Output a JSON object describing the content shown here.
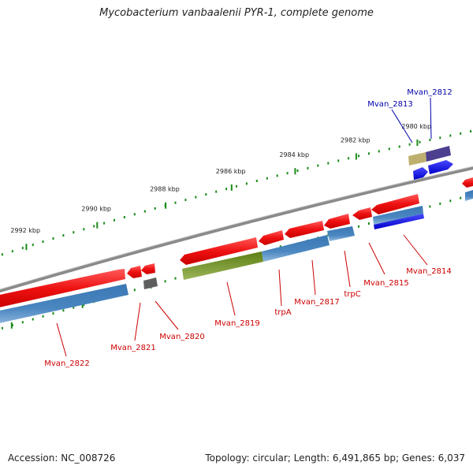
{
  "title": "Mycobacterium vanbaalenii PYR-1, complete genome",
  "footer": {
    "accession": "Accession: NC_008726",
    "topology": "Topology: circular; Length: 6,491,865 bp; Genes: 6,037"
  },
  "colors": {
    "backbone": "#8a8a8a",
    "cds_forward": "#ee1111",
    "gene_bar": "#4a86c0",
    "label_red": "#cc0000",
    "label_blue": "#0000aa",
    "tick_green": "#1a8a1a"
  },
  "scale_labels": [
    {
      "kbp": 2980,
      "text": "2980 kbp"
    },
    {
      "kbp": 2982,
      "text": "2982 kbp"
    },
    {
      "kbp": 2984,
      "text": "2984 kbp"
    },
    {
      "kbp": 2986,
      "text": "2986 kbp"
    },
    {
      "kbp": 2988,
      "text": "2988 kbp"
    },
    {
      "kbp": 2990,
      "text": "2990 kbp"
    },
    {
      "kbp": 2992,
      "text": "2992 kbp"
    }
  ],
  "genes": [
    {
      "name": "Mvan_2812",
      "strand": "reverse",
      "color": "blue"
    },
    {
      "name": "Mvan_2813",
      "strand": "reverse",
      "color": "blue"
    },
    {
      "name": "Mvan_2814",
      "strand": "reverse",
      "color": "red"
    },
    {
      "name": "Mvan_2815",
      "strand": "reverse",
      "color": "red"
    },
    {
      "name": "trpC",
      "strand": "reverse",
      "color": "red"
    },
    {
      "name": "Mvan_2817",
      "strand": "reverse",
      "color": "red"
    },
    {
      "name": "trpA",
      "strand": "reverse",
      "color": "red"
    },
    {
      "name": "Mvan_2819",
      "strand": "reverse",
      "color": "red"
    },
    {
      "name": "Mvan_2820",
      "strand": "reverse",
      "color": "red"
    },
    {
      "name": "Mvan_2821",
      "strand": "reverse",
      "color": "red"
    },
    {
      "name": "Mvan_2822",
      "strand": "reverse",
      "color": "red"
    }
  ]
}
